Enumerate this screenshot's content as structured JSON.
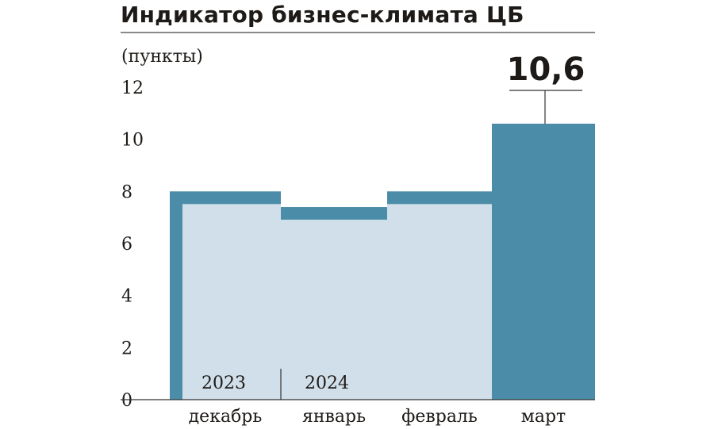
{
  "title": "Индикатор бизнес-климата ЦБ",
  "colors": {
    "bar_dark": "#4b8da8",
    "bar_light": "#d0dfe9",
    "text": "#1e1a17",
    "rule": "#333333"
  },
  "chart_data": {
    "type": "bar",
    "title": "Индикатор бизнес-климата ЦБ",
    "ylabel": "(пункты)",
    "xlabel": "",
    "categories": [
      "декабрь",
      "январь",
      "февраль",
      "март"
    ],
    "values": [
      8.0,
      7.4,
      8.0,
      10.6
    ],
    "ylim": [
      0,
      12
    ],
    "yticks": [
      "0",
      "2",
      "4",
      "6",
      "8",
      "10",
      "12"
    ],
    "highlight": {
      "index": 3,
      "label": "10,6"
    },
    "year_labels": [
      "2023",
      "2024"
    ],
    "grid": false,
    "legend": "none"
  }
}
